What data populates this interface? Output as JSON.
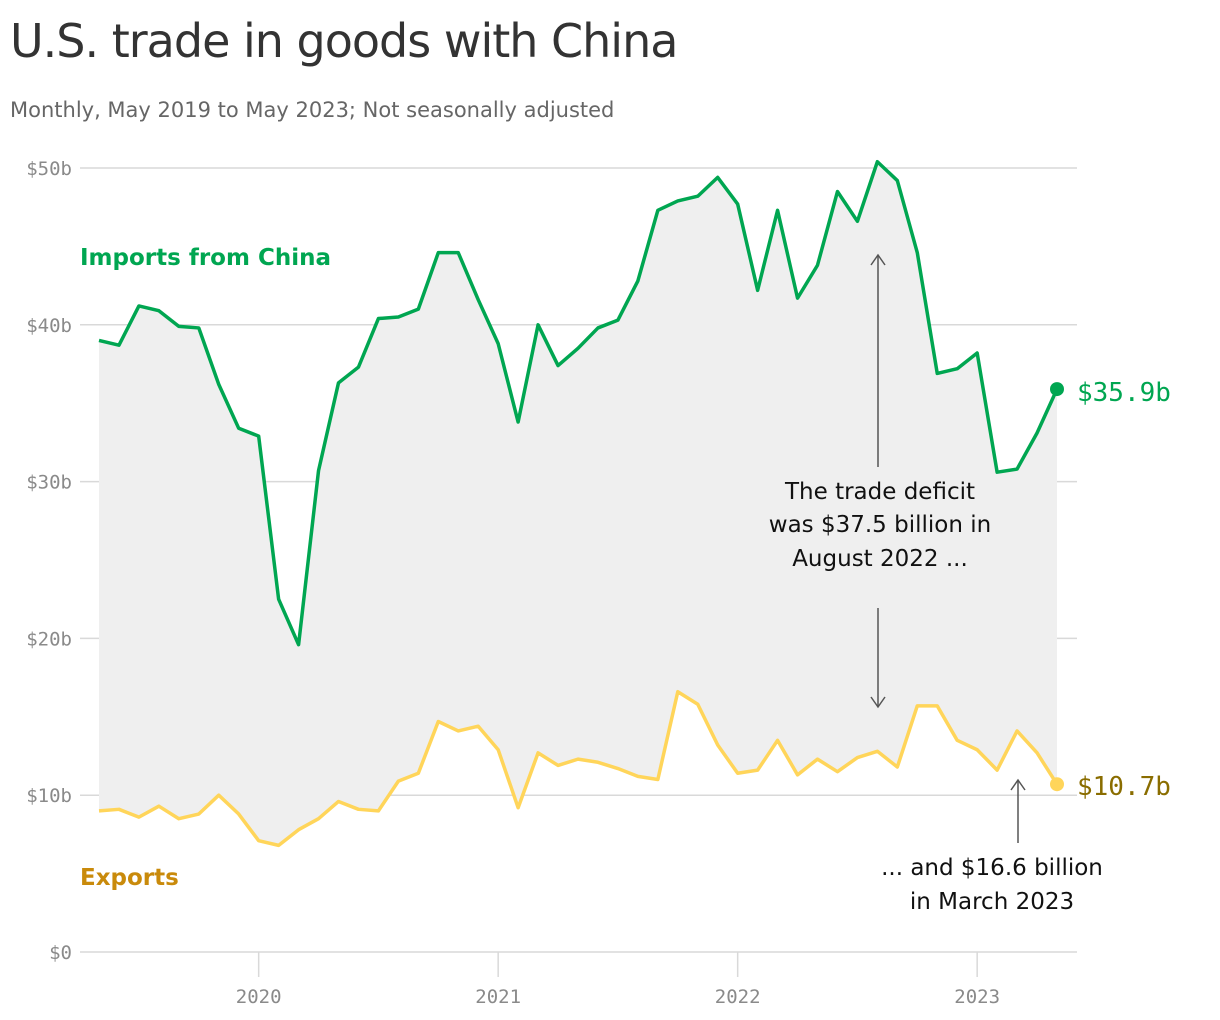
{
  "header": {
    "title": "U.S. trade in goods with China",
    "subtitle": "Monthly, May 2019 to May 2023; Not seasonally adjusted"
  },
  "colors": {
    "imports": "#00a651",
    "exports": "#ffd55a",
    "exports_label": "#c98a0b",
    "exports_end": "#8a6d00",
    "gap_fill": "#efefef",
    "grid": "#d9d9d9",
    "annotation_arrow": "#555555"
  },
  "chart_data": {
    "type": "line",
    "title": "U.S. trade in goods with China",
    "subtitle": "Monthly, May 2019 to May 2023; Not seasonally adjusted",
    "x_start": "2019-05",
    "x_end": "2023-05",
    "x_ticks": [
      "2020",
      "2021",
      "2022",
      "2023"
    ],
    "y_ticks": [
      "$0",
      "$10b",
      "$20b",
      "$30b",
      "$40b",
      "$50b"
    ],
    "ylim": [
      0,
      50
    ],
    "grid": true,
    "series": [
      {
        "name": "Imports from China",
        "values": [
          39.0,
          38.7,
          41.2,
          40.9,
          39.9,
          39.8,
          36.2,
          33.4,
          32.9,
          22.5,
          19.6,
          30.7,
          36.3,
          37.3,
          40.4,
          40.5,
          41.0,
          44.6,
          44.6,
          41.6,
          38.8,
          33.8,
          40.0,
          37.4,
          38.5,
          39.8,
          40.3,
          42.8,
          47.3,
          47.9,
          48.2,
          49.4,
          47.7,
          42.2,
          47.3,
          41.7,
          43.8,
          48.5,
          46.6,
          50.4,
          49.2,
          44.6,
          36.9,
          37.2,
          38.2,
          30.6,
          30.8,
          33.1,
          35.9
        ],
        "end_label": "$35.9b"
      },
      {
        "name": "Exports",
        "values": [
          9.0,
          9.1,
          8.6,
          9.3,
          8.5,
          8.8,
          10.0,
          8.8,
          7.1,
          6.8,
          7.8,
          8.5,
          9.6,
          9.1,
          9.0,
          10.9,
          11.4,
          14.7,
          14.1,
          14.4,
          12.9,
          9.2,
          12.7,
          11.9,
          12.3,
          12.1,
          11.7,
          11.2,
          11.0,
          16.6,
          15.8,
          13.2,
          11.4,
          11.6,
          13.5,
          11.3,
          12.3,
          11.5,
          12.4,
          12.8,
          11.8,
          15.7,
          15.7,
          13.5,
          12.9,
          11.6,
          14.1,
          12.7,
          10.7
        ],
        "end_label": "$10.7b"
      }
    ],
    "annotations": [
      {
        "text": [
          "The trade deficit",
          "was $37.5 billion in",
          "August 2022 ..."
        ],
        "x": "2022-08"
      },
      {
        "text": [
          "... and $16.6 billion",
          "in March 2023"
        ],
        "x": "2023-03"
      }
    ]
  }
}
